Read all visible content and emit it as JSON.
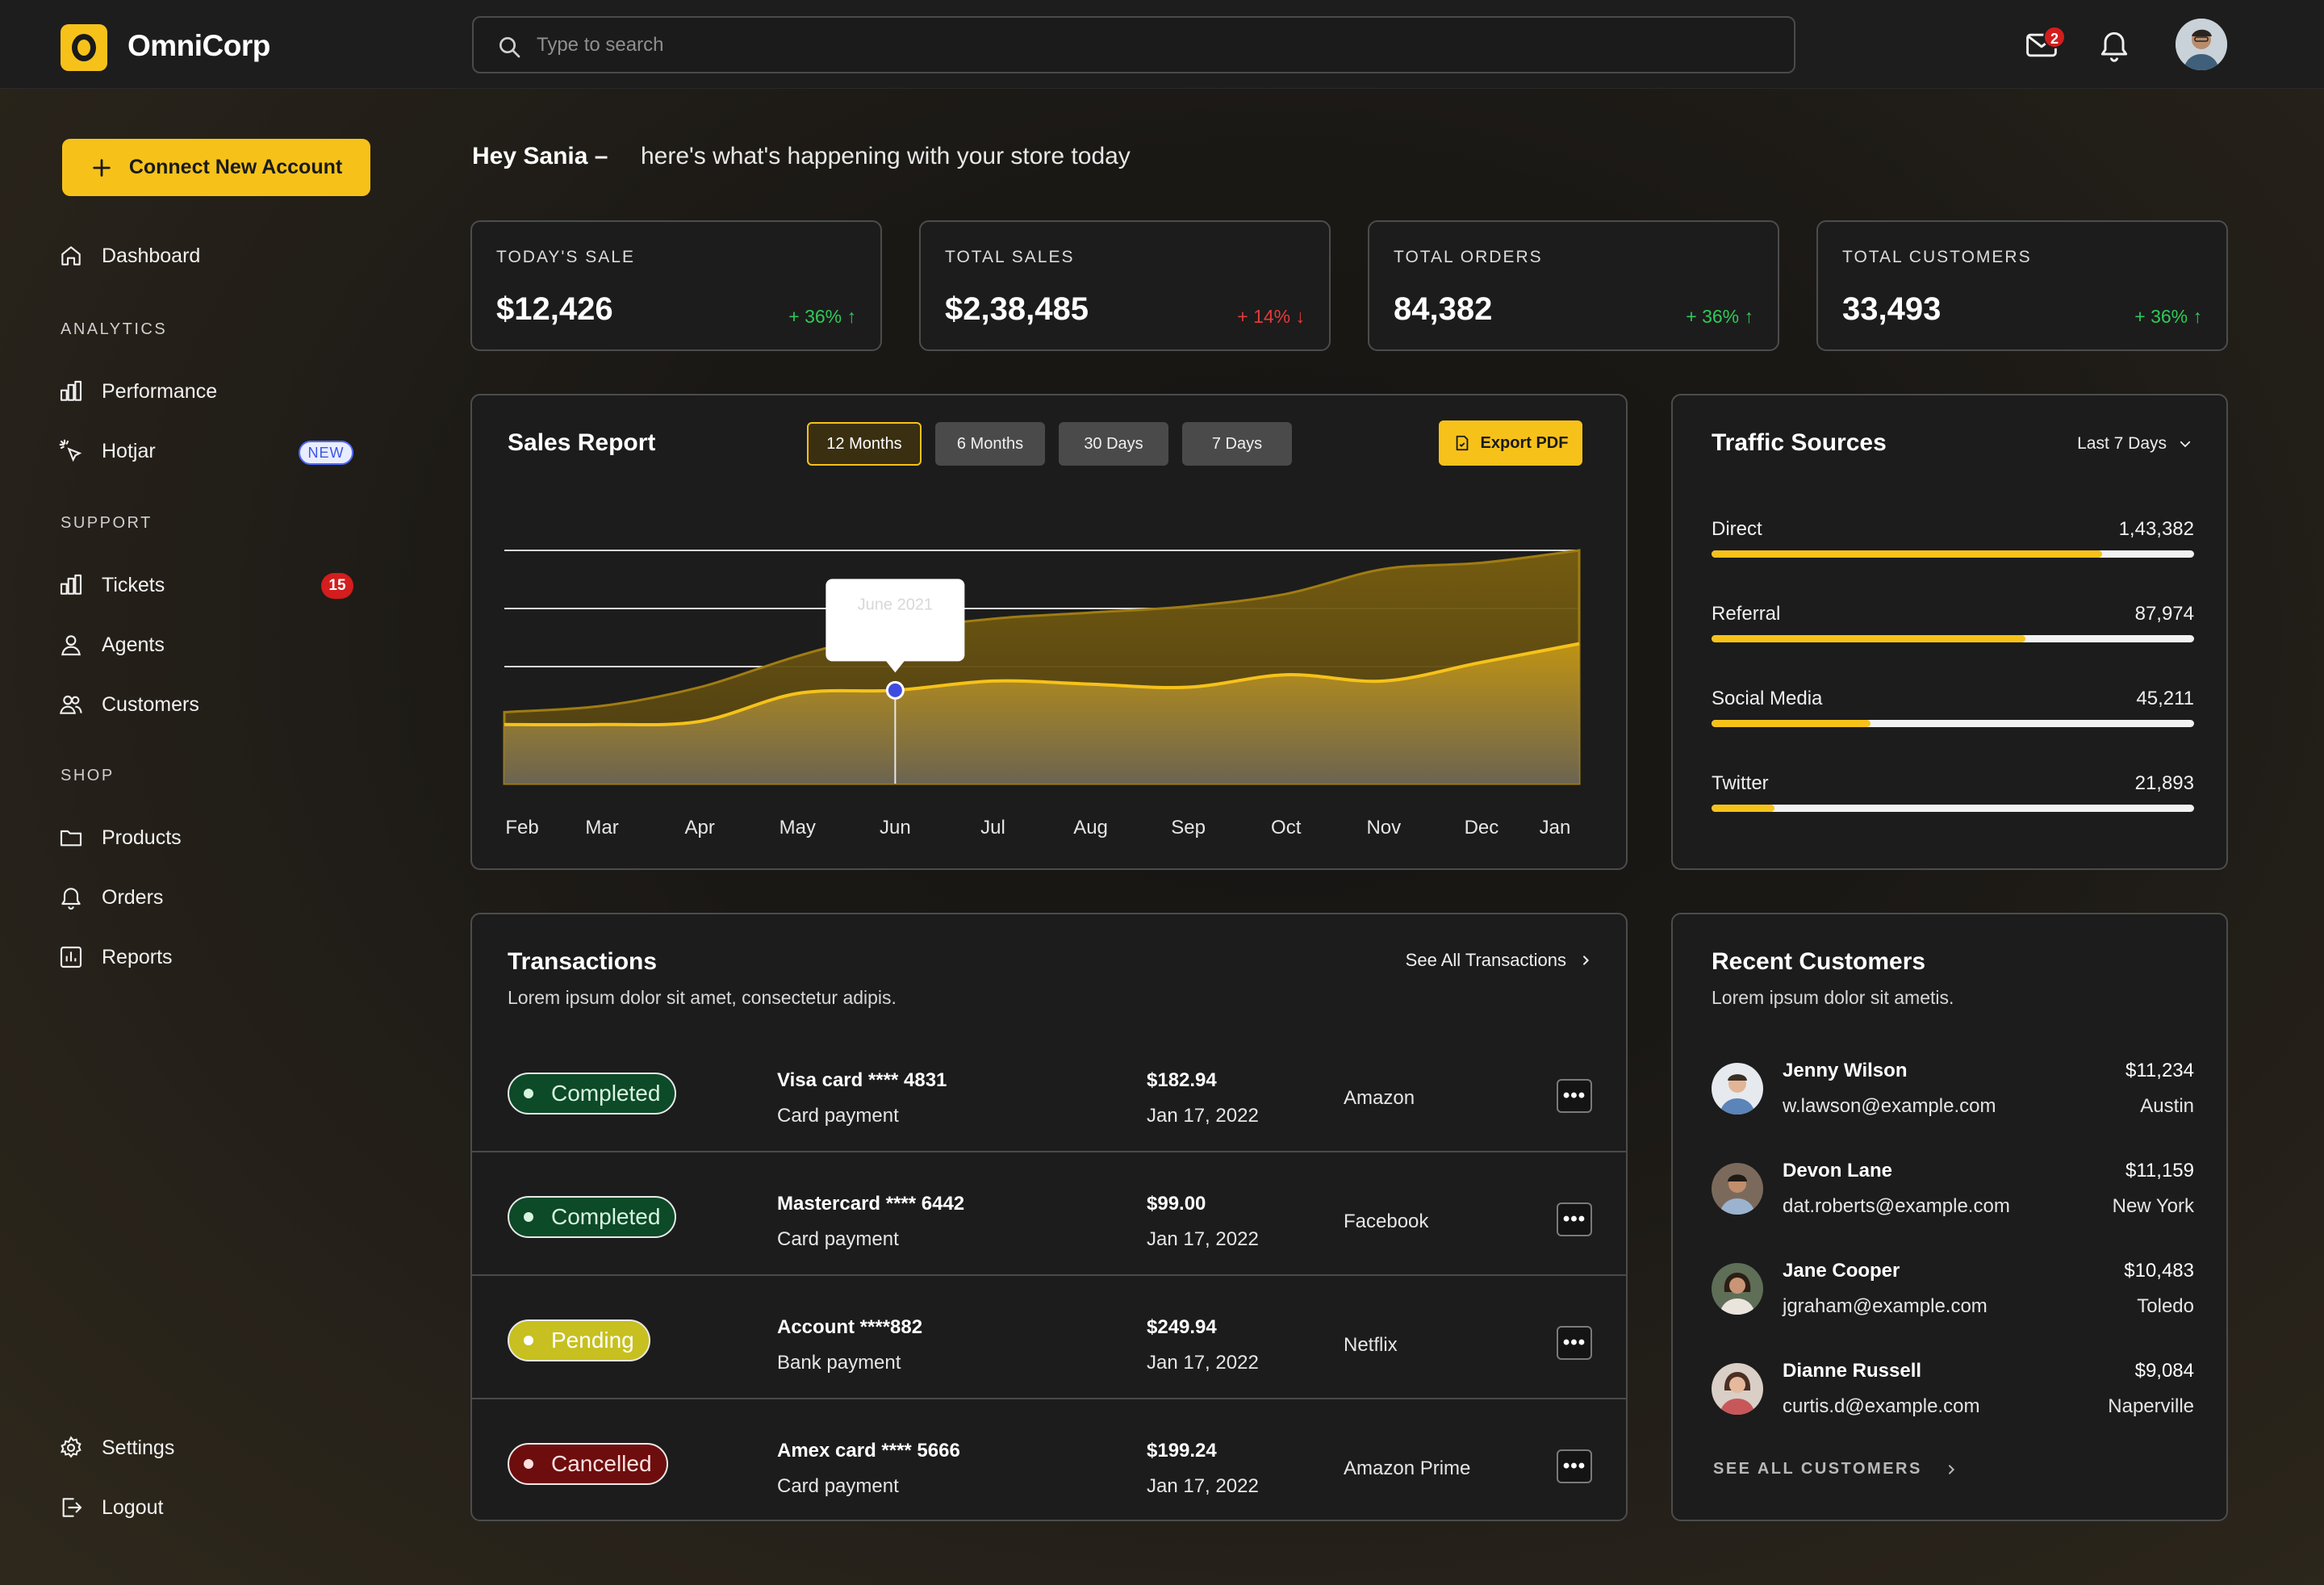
{
  "app": {
    "name": "OmniCorp",
    "logo_letter": "O"
  },
  "search": {
    "placeholder": "Type to search"
  },
  "header": {
    "mail_count": "2"
  },
  "sidebar": {
    "connect_label": "Connect New Account",
    "dashboard": "Dashboard",
    "sections": {
      "analytics": "ANALYTICS",
      "support": "SUPPORT",
      "shop": "SHOP"
    },
    "performance": "Performance",
    "hotjar": "Hotjar",
    "hotjar_badge": "NEW",
    "tickets": "Tickets",
    "tickets_count": "15",
    "agents": "Agents",
    "customers": "Customers",
    "products": "Products",
    "orders": "Orders",
    "reports": "Reports",
    "settings": "Settings",
    "logout": "Logout"
  },
  "greeting": {
    "name": "Hey Sania –",
    "message": "here's what's happening with your store today"
  },
  "stats": [
    {
      "label": "TODAY'S SALE",
      "value": "$12,426",
      "change": "+ 36% ↑",
      "trend": "up"
    },
    {
      "label": "TOTAL SALES",
      "value": "$2,38,485",
      "change": "+ 14% ↓",
      "trend": "down"
    },
    {
      "label": "TOTAL ORDERS",
      "value": "84,382",
      "change": "+ 36% ↑",
      "trend": "up"
    },
    {
      "label": "TOTAL CUSTOMERS",
      "value": "33,493",
      "change": "+ 36% ↑",
      "trend": "up"
    }
  ],
  "sales_report": {
    "title": "Sales Report",
    "ranges": [
      "12 Months",
      "6 Months",
      "30 Days",
      "7 Days"
    ],
    "active_range": "12 Months",
    "export_label": "Export PDF",
    "tooltip": "June 2021"
  },
  "chart_data": {
    "type": "area",
    "categories": [
      "Feb",
      "Mar",
      "Apr",
      "May",
      "Jun",
      "Jul",
      "Aug",
      "Sep",
      "Oct",
      "Nov",
      "Dec",
      "Jan"
    ],
    "series": [
      {
        "values": [
          48,
          50,
          56,
          66,
          74,
          78,
          80,
          82,
          86,
          94,
          96,
          100
        ],
        "color": "#7a5f10"
      },
      {
        "values": [
          44,
          44,
          45,
          54,
          55,
          58,
          57,
          56,
          60,
          58,
          64,
          70
        ],
        "color": "#f6c21a"
      }
    ],
    "highlight": {
      "category": "Jun",
      "label": "June 2021"
    },
    "ylim": [
      0,
      100
    ],
    "grid": true
  },
  "traffic": {
    "title": "Traffic Sources",
    "range": "Last 7 Days",
    "items": [
      {
        "label": "Direct",
        "value": "1,43,382",
        "fraction": 0.81
      },
      {
        "label": "Referral",
        "value": "87,974",
        "fraction": 0.65
      },
      {
        "label": "Social Media",
        "value": "45,211",
        "fraction": 0.33
      },
      {
        "label": "Twitter",
        "value": "21,893",
        "fraction": 0.13
      }
    ]
  },
  "transactions": {
    "title": "Transactions",
    "subtitle": "Lorem ipsum dolor sit amet, consectetur adipis.",
    "see_all": "See All Transactions",
    "rows": [
      {
        "status": "Completed",
        "method": "Visa card  **** 4831",
        "type": "Card payment",
        "amount": "$182.94",
        "date": "Jan 17, 2022",
        "merchant": "Amazon"
      },
      {
        "status": "Completed",
        "method": "Mastercard  **** 6442",
        "type": "Card payment",
        "amount": "$99.00",
        "date": "Jan 17, 2022",
        "merchant": "Facebook"
      },
      {
        "status": "Pending",
        "method": "Account  ****882",
        "type": "Bank payment",
        "amount": "$249.94",
        "date": "Jan 17, 2022",
        "merchant": "Netflix"
      },
      {
        "status": "Cancelled",
        "method": "Amex card  **** 5666",
        "type": "Card payment",
        "amount": "$199.24",
        "date": "Jan 17, 2022",
        "merchant": "Amazon Prime"
      }
    ]
  },
  "recent_customers": {
    "title": "Recent Customers",
    "subtitle": "Lorem ipsum dolor sit ametis.",
    "see_all": "SEE ALL CUSTOMERS",
    "rows": [
      {
        "name": "Jenny Wilson",
        "email": "w.lawson@example.com",
        "amount": "$11,234",
        "city": "Austin"
      },
      {
        "name": "Devon Lane",
        "email": "dat.roberts@example.com",
        "amount": "$11,159",
        "city": "New York"
      },
      {
        "name": "Jane Cooper",
        "email": "jgraham@example.com",
        "amount": "$10,483",
        "city": "Toledo"
      },
      {
        "name": "Dianne Russell",
        "email": "curtis.d@example.com",
        "amount": "$9,084",
        "city": "Naperville"
      }
    ]
  },
  "colors": {
    "accent": "#f6c21a",
    "positive": "#2ecb58",
    "negative": "#e33b3b"
  }
}
